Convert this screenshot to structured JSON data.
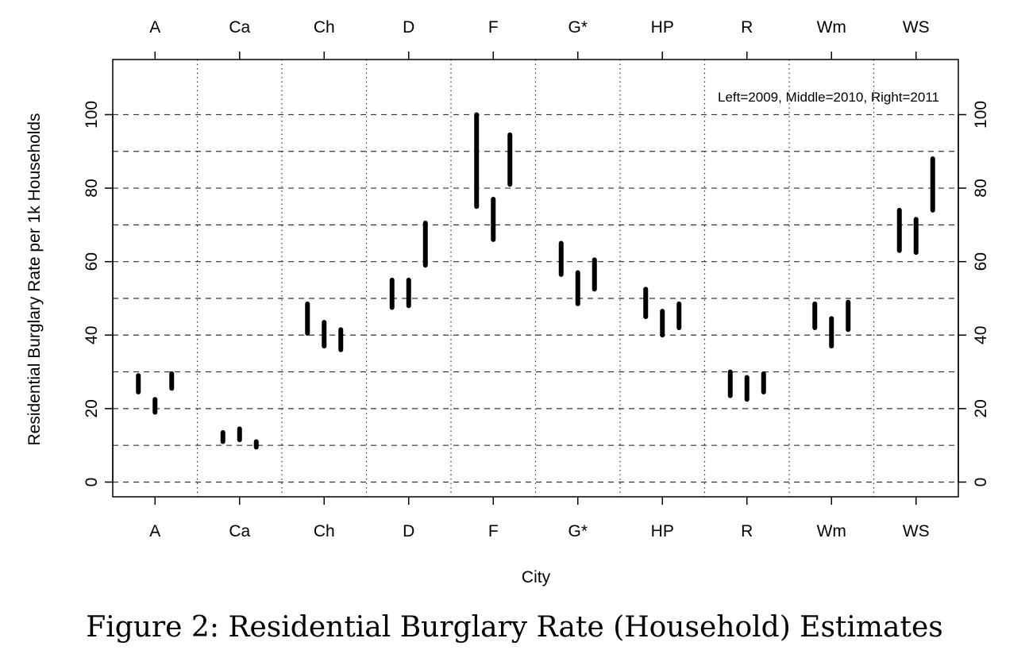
{
  "figure_caption": "Figure 2: Residential Burglary Rate (Household) Estimates",
  "chart_data": {
    "type": "interval",
    "title": "",
    "xlabel": "City",
    "ylabel": "Residential Burglary Rate per 1k Households",
    "annotation": "Left=2009, Middle=2010, Right=2011",
    "categories": [
      "A",
      "Ca",
      "Ch",
      "D",
      "F",
      "G*",
      "HP",
      "R",
      "Wm",
      "WS"
    ],
    "ylim": [
      -4,
      115
    ],
    "yticks": [
      0,
      20,
      40,
      60,
      80,
      100
    ],
    "ygrid_minor": [
      10,
      30,
      50,
      70,
      90
    ],
    "grid": true,
    "series": [
      {
        "name": "2009",
        "intervals": [
          [
            24.5,
            29
          ],
          [
            11,
            13.5
          ],
          [
            40.5,
            48.5
          ],
          [
            47.5,
            55
          ],
          [
            75,
            100
          ],
          [
            56.5,
            65
          ],
          [
            45,
            52.5
          ],
          [
            23.5,
            30
          ],
          [
            42,
            48.5
          ],
          [
            63,
            74
          ]
        ]
      },
      {
        "name": "2010",
        "intervals": [
          [
            19,
            22.5
          ],
          [
            11.5,
            14.5
          ],
          [
            37,
            43.5
          ],
          [
            48,
            55
          ],
          [
            66,
            77
          ],
          [
            48.5,
            57
          ],
          [
            40,
            46.5
          ],
          [
            22.5,
            28.5
          ],
          [
            37,
            44.5
          ],
          [
            62.5,
            71.5
          ]
        ]
      },
      {
        "name": "2011",
        "intervals": [
          [
            25.5,
            29.5
          ],
          [
            9.5,
            11
          ],
          [
            36,
            41.5
          ],
          [
            59,
            70.5
          ],
          [
            81,
            94.5
          ],
          [
            52.5,
            60.5
          ],
          [
            42,
            48.5
          ],
          [
            24.5,
            29.5
          ],
          [
            41.5,
            49
          ],
          [
            74,
            88
          ]
        ]
      }
    ],
    "colors": {
      "marks": "#000000",
      "grid": "#333333"
    }
  }
}
